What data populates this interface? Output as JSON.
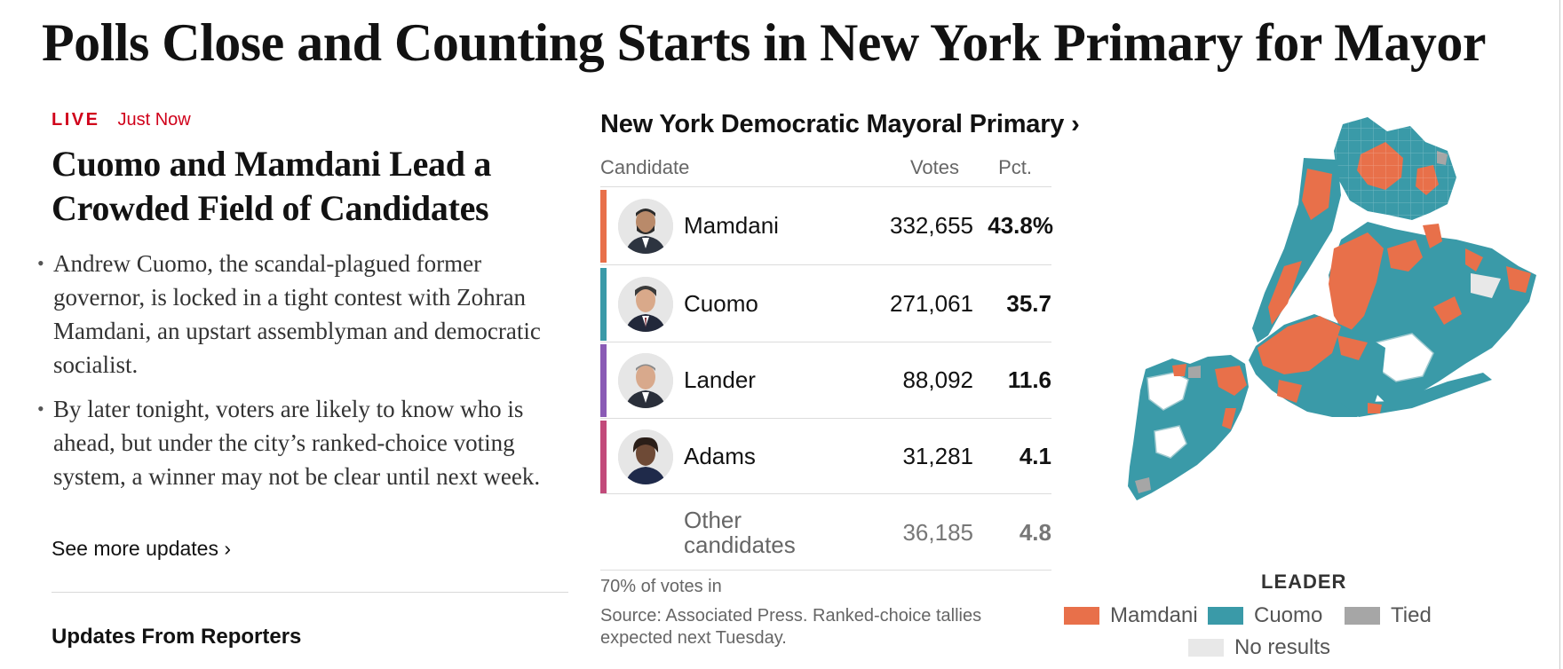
{
  "headline": "Polls Close and Counting Starts in New York Primary for Mayor",
  "live": {
    "label": "LIVE",
    "time": "Just Now"
  },
  "story": {
    "title": "Cuomo and Mamdani Lead a Crowded Field of Candidates",
    "bullets": [
      "Andrew Cuomo, the scandal-plagued former governor, is locked in a tight contest with Zohran Mamdani, an upstart assemblyman and democratic socialist.",
      "By later tonight, voters are likely to know who is ahead, but under the city’s ranked-choice voting system, a winner may not be clear until next week."
    ],
    "see_more": "See more updates ›",
    "updates_heading": "Updates From Reporters"
  },
  "results": {
    "title": "New York Democratic Mayoral Primary ›",
    "headers": {
      "candidate": "Candidate",
      "votes": "Votes",
      "pct": "Pct."
    },
    "rows": [
      {
        "name": "Mamdani",
        "votes": "332,655",
        "pct": "43.8%",
        "color": "#e8704a"
      },
      {
        "name": "Cuomo",
        "votes": "271,061",
        "pct": "35.7",
        "color": "#3a9aa8"
      },
      {
        "name": "Lander",
        "votes": "88,092",
        "pct": "11.6",
        "color": "#8a5bb5"
      },
      {
        "name": "Adams",
        "votes": "31,281",
        "pct": "4.1",
        "color": "#c24a7a"
      }
    ],
    "other": {
      "name": "Other candidates",
      "votes": "36,185",
      "pct": "4.8"
    },
    "votes_in": "70% of votes in",
    "source": "Source: Associated Press. Ranked-choice tallies expected next Tuesday."
  },
  "map": {
    "leader_label": "LEADER",
    "legend": [
      {
        "label": "Mamdani",
        "color": "#e8704a"
      },
      {
        "label": "Cuomo",
        "color": "#3a9aa8"
      },
      {
        "label": "Tied",
        "color": "#a6a6a6"
      },
      {
        "label": "No results",
        "color": "#e8e8e8"
      }
    ]
  }
}
